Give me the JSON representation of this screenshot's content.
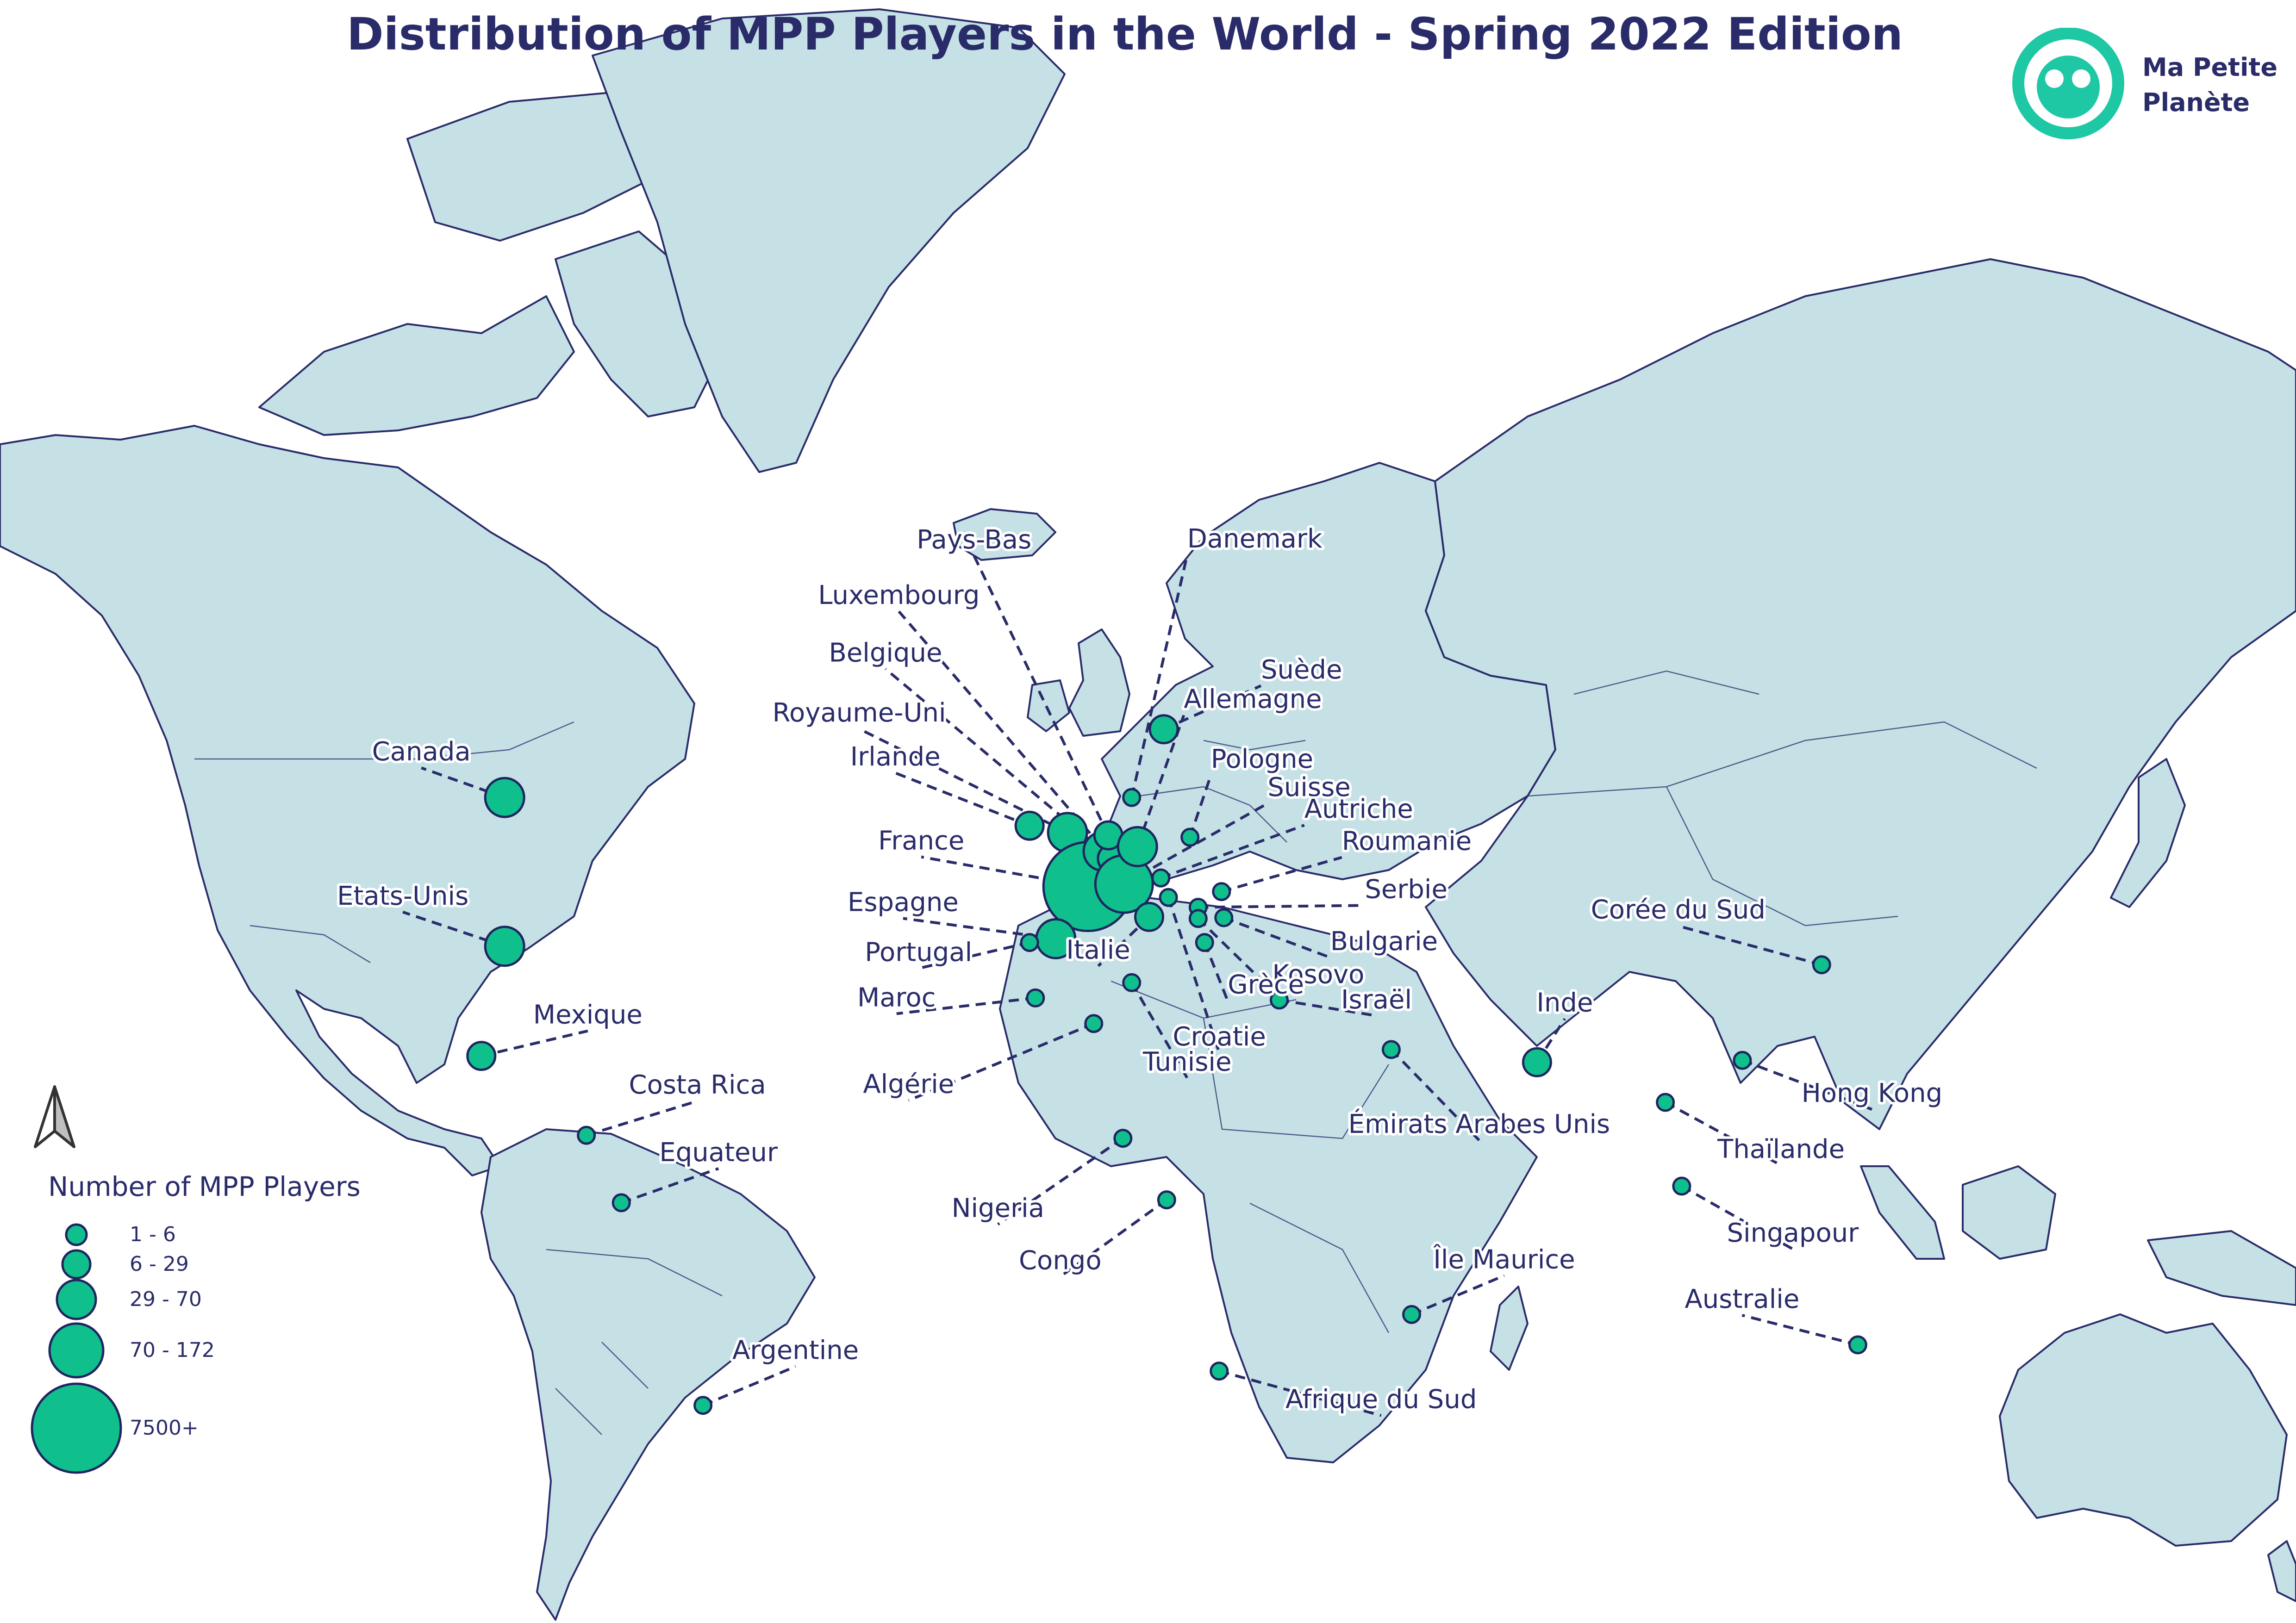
{
  "title": "Distribution of MPP Players in the World - Spring 2022 Edition",
  "brand": {
    "line1": "Ma Petite",
    "line2": "Planète",
    "logo_icon": "face-logo-icon",
    "accent_color": "#1ec8a5"
  },
  "colors": {
    "land": "#c5e1e6",
    "border": "#2a2c6a",
    "marker": "#0fbf8c",
    "title": "#2a2c6a"
  },
  "north_arrow_icon": "north-arrow-icon",
  "legend": {
    "title": "Number of MPP Players",
    "classes": [
      {
        "label": "1 - 6"
      },
      {
        "label": "6 - 29"
      },
      {
        "label": "29 - 70"
      },
      {
        "label": "70 - 172"
      },
      {
        "label": "7500+"
      }
    ]
  },
  "countries": [
    {
      "name": "Canada",
      "lat": 56.0,
      "lon": -98.0,
      "size_class": 2
    },
    {
      "name": "Etats-Unis",
      "lat": 39.0,
      "lon": -98.0,
      "size_class": 2
    },
    {
      "name": "Mexique",
      "lat": 23.0,
      "lon": -102.0,
      "size_class": 1
    },
    {
      "name": "Costa Rica",
      "lat": 10.0,
      "lon": -84.0,
      "size_class": 0
    },
    {
      "name": "Equateur",
      "lat": -1.5,
      "lon": -78.0,
      "size_class": 0
    },
    {
      "name": "Argentine",
      "lat": -34.0,
      "lon": -64.0,
      "size_class": 0
    },
    {
      "name": "Irlande",
      "lat": 53.2,
      "lon": -8.0,
      "size_class": 1
    },
    {
      "name": "Royaume-Uni",
      "lat": 52.5,
      "lon": -1.5,
      "size_class": 2
    },
    {
      "name": "France",
      "lat": 46.5,
      "lon": 2.0,
      "size_class": 4
    },
    {
      "name": "Espagne",
      "lat": 40.0,
      "lon": -3.5,
      "size_class": 2
    },
    {
      "name": "Portugal",
      "lat": 39.5,
      "lon": -8.0,
      "size_class": 0
    },
    {
      "name": "Belgique",
      "lat": 50.5,
      "lon": 4.6,
      "size_class": 2
    },
    {
      "name": "Luxembourg",
      "lat": 49.7,
      "lon": 6.1,
      "size_class": 1
    },
    {
      "name": "Pays-Bas",
      "lat": 52.2,
      "lon": 5.5,
      "size_class": 1
    },
    {
      "name": "Suisse",
      "lat": 46.8,
      "lon": 8.2,
      "size_class": 3
    },
    {
      "name": "Allemagne",
      "lat": 51.0,
      "lon": 10.5,
      "size_class": 2
    },
    {
      "name": "Danemark",
      "lat": 56.0,
      "lon": 9.5,
      "size_class": 0
    },
    {
      "name": "Suède",
      "lat": 62.0,
      "lon": 15.0,
      "size_class": 1
    },
    {
      "name": "Pologne",
      "lat": 52.0,
      "lon": 19.5,
      "size_class": 0
    },
    {
      "name": "Autriche",
      "lat": 47.5,
      "lon": 14.5,
      "size_class": 0
    },
    {
      "name": "Italie",
      "lat": 42.8,
      "lon": 12.5,
      "size_class": 1
    },
    {
      "name": "Croatie",
      "lat": 45.2,
      "lon": 15.8,
      "size_class": 0
    },
    {
      "name": "Roumanie",
      "lat": 45.9,
      "lon": 24.9,
      "size_class": 0
    },
    {
      "name": "Serbie",
      "lat": 44.0,
      "lon": 20.9,
      "size_class": 0
    },
    {
      "name": "Bulgarie",
      "lat": 42.7,
      "lon": 25.3,
      "size_class": 0
    },
    {
      "name": "Kosovo",
      "lat": 42.6,
      "lon": 20.9,
      "size_class": 0
    },
    {
      "name": "Grèce",
      "lat": 39.5,
      "lon": 22.0,
      "size_class": 0
    },
    {
      "name": "Tunisie",
      "lat": 34.0,
      "lon": 9.5,
      "size_class": 0
    },
    {
      "name": "Maroc",
      "lat": 31.8,
      "lon": -7.0,
      "size_class": 0
    },
    {
      "name": "Algérie",
      "lat": 28.0,
      "lon": 3.0,
      "size_class": 0
    },
    {
      "name": "Israël",
      "lat": 31.5,
      "lon": 34.8,
      "size_class": 0
    },
    {
      "name": "Émirats Arabes Unis",
      "lat": 24.0,
      "lon": 54.0,
      "size_class": 0
    },
    {
      "name": "Inde",
      "lat": 22.0,
      "lon": 79.0,
      "size_class": 1
    },
    {
      "name": "Corée du Sud",
      "lat": 36.5,
      "lon": 127.8,
      "size_class": 0
    },
    {
      "name": "Hong Kong",
      "lat": 22.3,
      "lon": 114.2,
      "size_class": 0
    },
    {
      "name": "Thaïlande",
      "lat": 15.5,
      "lon": 101.0,
      "size_class": 0
    },
    {
      "name": "Singapour",
      "lat": 1.35,
      "lon": 103.8,
      "size_class": 0
    },
    {
      "name": "Nigeria",
      "lat": 9.5,
      "lon": 8.0,
      "size_class": 0
    },
    {
      "name": "Congo",
      "lat": -1.0,
      "lon": 15.5,
      "size_class": 0
    },
    {
      "name": "Île Maurice",
      "lat": -20.2,
      "lon": 57.5,
      "size_class": 0
    },
    {
      "name": "Afrique du Sud",
      "lat": -29.0,
      "lon": 24.5,
      "size_class": 0
    },
    {
      "name": "Australie",
      "lat": -25.0,
      "lon": 134.0,
      "size_class": 0
    }
  ]
}
